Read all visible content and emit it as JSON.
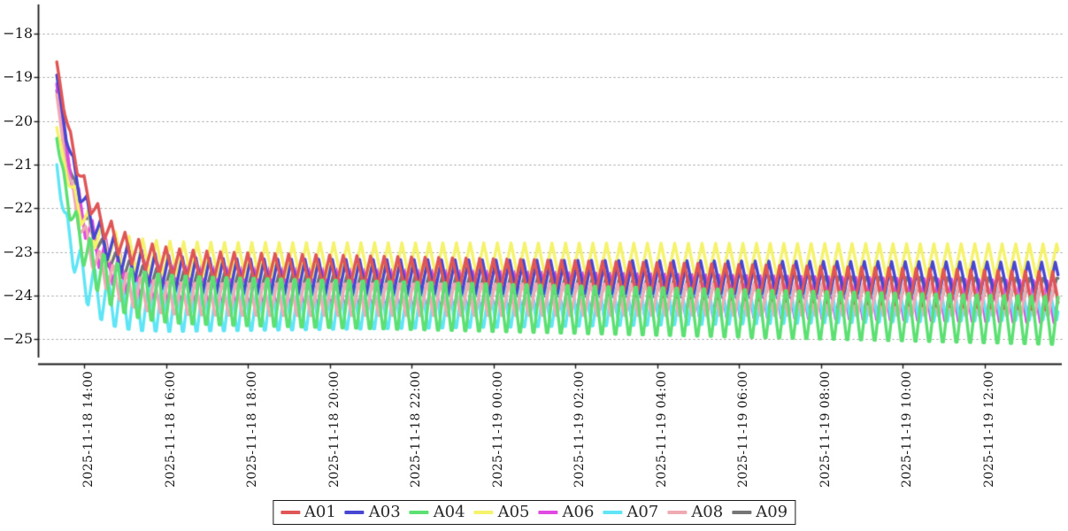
{
  "chart_data": {
    "type": "line",
    "title": "",
    "xlabel": "",
    "ylabel": "",
    "x_start": "2025-11-18 13:20",
    "x_end": "2025-11-19 13:48",
    "x_tick_labels": [
      "2025-11-18 14:00",
      "2025-11-18 16:00",
      "2025-11-18 18:00",
      "2025-11-18 20:00",
      "2025-11-18 22:00",
      "2025-11-19 00:00",
      "2025-11-19 02:00",
      "2025-11-19 04:00",
      "2025-11-19 06:00",
      "2025-11-19 08:00",
      "2025-11-19 10:00",
      "2025-11-19 12:00"
    ],
    "x_tick_interval_hours": 2,
    "y_ticks": [
      {
        "value": -18,
        "label": "−18"
      },
      {
        "value": -19,
        "label": "−19"
      },
      {
        "value": -20,
        "label": "−20"
      },
      {
        "value": -21,
        "label": "−21"
      },
      {
        "value": -22,
        "label": "−22"
      },
      {
        "value": -23,
        "label": "−23"
      },
      {
        "value": -24,
        "label": "−24"
      },
      {
        "value": -25,
        "label": "−25"
      }
    ],
    "ylim": [
      -25.6,
      -17.3
    ],
    "grid": "horizontal-dashed",
    "grid_color": "#999999",
    "axis_color": "#1a1a1a",
    "legend_position": "bottom-center",
    "osc_period_min": 20,
    "sample_step_min": 2,
    "duration_min": 1468,
    "start_offset_min_before_1400": 40,
    "series": [
      {
        "name": "A01",
        "color": "#e05555",
        "initial": -18.65,
        "mean_start": -23.25,
        "mean_end": -23.9,
        "amp_start": 0.32,
        "amp_end": 0.44,
        "tau_min": 42,
        "amp_tau_min": 30,
        "phase_min": 0,
        "steady_peak": -23.1,
        "steady_trough": -24.3
      },
      {
        "name": "A03",
        "color": "#4747d1",
        "initial": -18.95,
        "mean_start": -23.55,
        "mean_end": -23.6,
        "amp_start": 0.4,
        "amp_end": 0.36,
        "tau_min": 40,
        "amp_tau_min": 30,
        "phase_min": 4,
        "steady_peak": -23.2,
        "steady_trough": -23.95
      },
      {
        "name": "A04",
        "color": "#5ce072",
        "initial": -20.4,
        "mean_start": -24.05,
        "mean_end": -24.58,
        "amp_start": 0.68,
        "amp_end": 0.68,
        "tau_min": 35,
        "amp_tau_min": 28,
        "phase_min": 9,
        "steady_peak": -23.9,
        "steady_trough": -25.25
      },
      {
        "name": "A05",
        "color": "#f5f26b",
        "initial": -20.15,
        "mean_start": -23.18,
        "mean_end": -23.2,
        "amp_start": 0.4,
        "amp_end": 0.38,
        "tau_min": 35,
        "amp_tau_min": 28,
        "phase_min": 6,
        "steady_peak": -22.8,
        "steady_trough": -23.6
      },
      {
        "name": "A06",
        "color": "#e04ae0",
        "initial": -19.15,
        "mean_start": -23.75,
        "mean_end": -24.15,
        "amp_start": 0.48,
        "amp_end": 0.48,
        "tau_min": 36,
        "amp_tau_min": 30,
        "phase_min": 12,
        "steady_peak": -23.3,
        "steady_trough": -24.6
      },
      {
        "name": "A07",
        "color": "#5fe5f5",
        "initial": -21.0,
        "mean_start": -24.3,
        "mean_end": -24.2,
        "amp_start": 0.7,
        "amp_end": 0.45,
        "tau_min": 26,
        "amp_tau_min": 22,
        "phase_min": 15,
        "steady_peak": -23.6,
        "steady_trough": -25.0
      },
      {
        "name": "A08",
        "color": "#efaab2",
        "initial": -19.4,
        "mean_start": -24.1,
        "mean_end": -24.1,
        "amp_start": 0.45,
        "amp_end": 0.45,
        "tau_min": 35,
        "amp_tau_min": 30,
        "phase_min": 3,
        "steady_peak": -23.65,
        "steady_trough": -24.55
      },
      {
        "name": "A09",
        "color": "#757575",
        "initial": -19.3,
        "mean_start": -23.7,
        "mean_end": -23.85,
        "amp_start": 0.3,
        "amp_end": 0.3,
        "tau_min": 38,
        "amp_tau_min": 30,
        "phase_min": 7,
        "steady_peak": -23.45,
        "steady_trough": -24.1
      }
    ],
    "draw_order": [
      "A09",
      "A06",
      "A07",
      "A08",
      "A05",
      "A03",
      "A01",
      "A04"
    ]
  },
  "layoutless_note": ""
}
